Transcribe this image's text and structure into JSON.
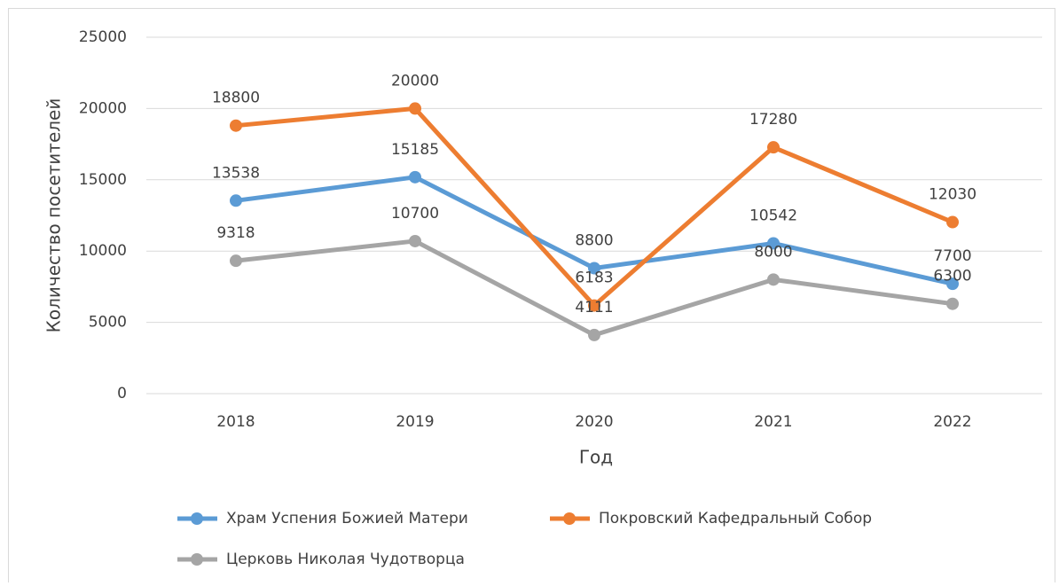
{
  "chart_data": {
    "type": "line",
    "x_label": "Год",
    "y_label": "Количество посетителей",
    "categories": [
      "2018",
      "2019",
      "2020",
      "2021",
      "2022"
    ],
    "series": [
      {
        "name": "Храм Успения Божией Матери",
        "color": "#5b9bd5",
        "values": [
          13538,
          15185,
          8800,
          10542,
          7700
        ]
      },
      {
        "name": "Покровский Кафедральный Собор",
        "color": "#ed7d31",
        "values": [
          18800,
          20000,
          6183,
          17280,
          12030
        ]
      },
      {
        "name": "Церковь Николая Чудотворца",
        "color": "#a5a5a5",
        "values": [
          9318,
          10700,
          4111,
          8000,
          6300
        ]
      }
    ],
    "ylim": [
      0,
      25000
    ],
    "yticks": [
      0,
      5000,
      10000,
      15000,
      20000,
      25000
    ],
    "grid": true,
    "legend": "bottom",
    "data_labels": true
  }
}
